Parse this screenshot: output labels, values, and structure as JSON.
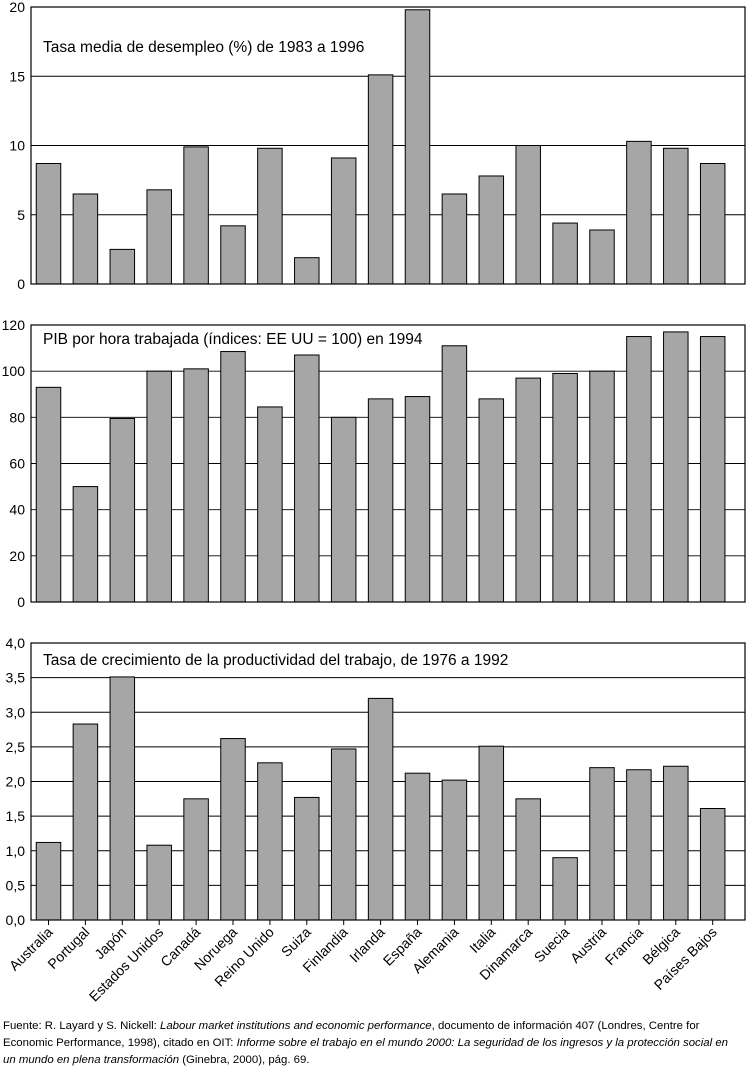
{
  "chart_data": [
    {
      "type": "bar",
      "title": "Tasa media de desempleo (%) de 1983 a 1996",
      "categories": [
        "Australia",
        "Portugal",
        "Japón",
        "Estados Unidos",
        "Canadá",
        "Noruega",
        "Reino Unido",
        "Suiza",
        "Finlandia",
        "Irlanda",
        "España",
        "Alemania",
        "Italia",
        "Dinamarca",
        "Suecia",
        "Austria",
        "Francia",
        "Bélgica",
        "Países Bajos"
      ],
      "values": [
        8.7,
        6.5,
        2.5,
        6.8,
        9.9,
        4.2,
        9.8,
        1.9,
        9.1,
        15.1,
        19.8,
        6.5,
        7.8,
        10.0,
        4.4,
        3.9,
        10.3,
        9.8,
        8.7
      ],
      "ylim": [
        0,
        20
      ],
      "yticks": [
        "0",
        "5",
        "10",
        "15",
        "20"
      ],
      "grid": true,
      "bar_color": "#a6a6a6"
    },
    {
      "type": "bar",
      "title": "PIB por hora trabajada (índices: EE UU = 100) en 1994",
      "categories": [
        "Australia",
        "Portugal",
        "Japón",
        "Estados Unidos",
        "Canadá",
        "Noruega",
        "Reino Unido",
        "Suiza",
        "Finlandia",
        "Irlanda",
        "España",
        "Alemania",
        "Italia",
        "Dinamarca",
        "Suecia",
        "Austria",
        "Francia",
        "Bélgica",
        "Países Bajos"
      ],
      "values": [
        93,
        50,
        79.5,
        100,
        101,
        108.5,
        84.5,
        107,
        80,
        88,
        89,
        111,
        88,
        97,
        99,
        100,
        115,
        117,
        115
      ],
      "ylim": [
        0,
        120
      ],
      "yticks": [
        "0",
        "20",
        "40",
        "60",
        "80",
        "100",
        "120"
      ],
      "grid": true,
      "bar_color": "#a6a6a6"
    },
    {
      "type": "bar",
      "title": "Tasa de crecimiento de la productividad del trabajo, de 1976 a 1992",
      "categories": [
        "Australia",
        "Portugal",
        "Japón",
        "Estados Unidos",
        "Canadá",
        "Noruega",
        "Reino Unido",
        "Suiza",
        "Finlandia",
        "Irlanda",
        "España",
        "Alemania",
        "Italia",
        "Dinamarca",
        "Suecia",
        "Austria",
        "Francia",
        "Bélgica",
        "Países Bajos"
      ],
      "values": [
        1.12,
        2.83,
        3.51,
        1.08,
        1.75,
        2.62,
        2.27,
        1.77,
        2.47,
        3.2,
        2.12,
        2.02,
        2.51,
        1.75,
        0.9,
        2.2,
        2.17,
        2.22,
        1.61
      ],
      "ylim": [
        0,
        4
      ],
      "yticks": [
        "0,0",
        "0,5",
        "1,0",
        "1,5",
        "2,0",
        "2,5",
        "3,0",
        "3,5",
        "4,0"
      ],
      "grid": true,
      "bar_color": "#a6a6a6"
    }
  ],
  "source": {
    "prefix": "Fuente: R. Layard y S. Nickell: ",
    "title1": "Labour market institutions and economic performance",
    "mid1": ", documento de información 407 (Londres, Centre for Economic Performance, 1998), citado en OIT: ",
    "title2": "Informe sobre el trabajo en el mundo 2000: La seguridad de los ingresos y la protección social en un mundo en plena transformación",
    "suffix": " (Ginebra, 2000), pág. 69."
  }
}
